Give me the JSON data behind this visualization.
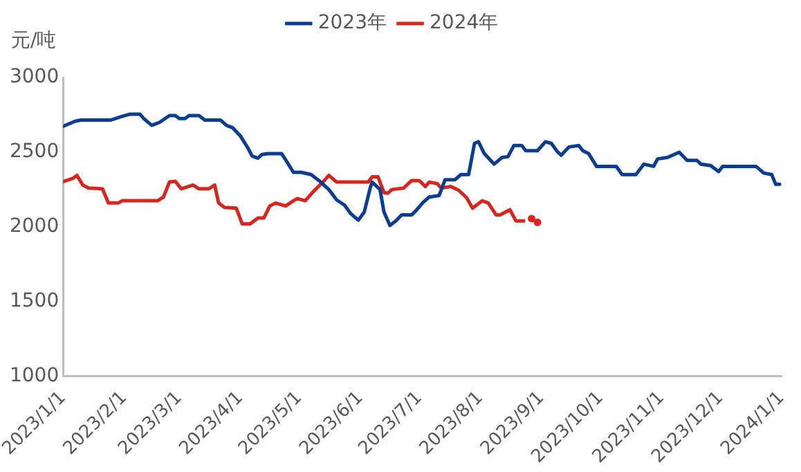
{
  "chart_data": {
    "type": "line",
    "ylabel": "元/吨",
    "legend": "top",
    "grid": false,
    "xlim": [
      "2023-01-01",
      "2024-01-01"
    ],
    "xticks": [
      {
        "value": "2023-01-01",
        "label": "2023/1/1"
      },
      {
        "value": "2023-02-01",
        "label": "2023/2/1"
      },
      {
        "value": "2023-03-01",
        "label": "2023/3/1"
      },
      {
        "value": "2023-04-01",
        "label": "2023/4/1"
      },
      {
        "value": "2023-05-01",
        "label": "2023/5/1"
      },
      {
        "value": "2023-06-01",
        "label": "2023/6/1"
      },
      {
        "value": "2023-07-01",
        "label": "2023/7/1"
      },
      {
        "value": "2023-08-01",
        "label": "2023/8/1"
      },
      {
        "value": "2023-09-01",
        "label": "2023/9/1"
      },
      {
        "value": "2023-10-01",
        "label": "2023/10/1"
      },
      {
        "value": "2023-11-01",
        "label": "2023/11/1"
      },
      {
        "value": "2023-12-01",
        "label": "2023/12/1"
      },
      {
        "value": "2024-01-01",
        "label": "2024/1/1"
      }
    ],
    "ylim": [
      1000,
      3000
    ],
    "yticks": [
      1000,
      1500,
      2000,
      2500,
      3000
    ],
    "series": [
      {
        "name": "2023年",
        "color": "#0b3d91",
        "x": [
          "2023-01-01",
          "2023-01-07",
          "2023-01-10",
          "2023-01-25",
          "2023-01-31",
          "2023-02-04",
          "2023-02-09",
          "2023-02-11",
          "2023-02-15",
          "2023-02-19",
          "2023-02-24",
          "2023-02-27",
          "2023-03-01",
          "2023-03-04",
          "2023-03-06",
          "2023-03-11",
          "2023-03-14",
          "2023-03-22",
          "2023-03-25",
          "2023-03-28",
          "2023-04-01",
          "2023-04-05",
          "2023-04-07",
          "2023-04-10",
          "2023-04-12",
          "2023-04-15",
          "2023-04-22",
          "2023-04-24",
          "2023-04-28",
          "2023-05-02",
          "2023-05-07",
          "2023-05-11",
          "2023-05-16",
          "2023-05-20",
          "2023-05-24",
          "2023-05-27",
          "2023-05-31",
          "2023-06-03",
          "2023-06-06",
          "2023-06-07",
          "2023-06-11",
          "2023-06-13",
          "2023-06-16",
          "2023-06-19",
          "2023-06-22",
          "2023-06-27",
          "2023-06-29",
          "2023-07-03",
          "2023-07-06",
          "2023-07-11",
          "2023-07-14",
          "2023-07-19",
          "2023-07-22",
          "2023-07-26",
          "2023-07-29",
          "2023-07-31",
          "2023-08-03",
          "2023-08-08",
          "2023-08-12",
          "2023-08-15",
          "2023-08-18",
          "2023-08-22",
          "2023-08-24",
          "2023-08-30",
          "2023-09-03",
          "2023-09-06",
          "2023-09-09",
          "2023-09-11",
          "2023-09-15",
          "2023-09-20",
          "2023-09-22",
          "2023-09-25",
          "2023-09-29",
          "2023-10-09",
          "2023-10-12",
          "2023-10-19",
          "2023-10-23",
          "2023-10-28",
          "2023-10-30",
          "2023-11-04",
          "2023-11-10",
          "2023-11-14",
          "2023-11-19",
          "2023-11-21",
          "2023-11-26",
          "2023-11-30",
          "2023-12-02",
          "2023-12-19",
          "2023-12-23",
          "2023-12-27",
          "2023-12-29",
          "2023-12-31"
        ],
        "values": [
          2673,
          2707,
          2715,
          2715,
          2740,
          2755,
          2755,
          2725,
          2680,
          2700,
          2745,
          2745,
          2725,
          2725,
          2745,
          2745,
          2715,
          2715,
          2680,
          2665,
          2610,
          2525,
          2475,
          2460,
          2485,
          2490,
          2490,
          2450,
          2365,
          2365,
          2350,
          2310,
          2250,
          2180,
          2145,
          2090,
          2045,
          2100,
          2260,
          2300,
          2250,
          2100,
          2010,
          2040,
          2080,
          2080,
          2105,
          2165,
          2200,
          2210,
          2315,
          2315,
          2350,
          2350,
          2560,
          2570,
          2490,
          2420,
          2465,
          2470,
          2545,
          2545,
          2510,
          2510,
          2570,
          2560,
          2505,
          2480,
          2535,
          2545,
          2510,
          2490,
          2405,
          2405,
          2350,
          2350,
          2420,
          2405,
          2455,
          2465,
          2500,
          2445,
          2445,
          2420,
          2410,
          2370,
          2405,
          2405,
          2360,
          2350,
          2285,
          2285
        ]
      },
      {
        "name": "2024年",
        "color": "#d7261e",
        "x": [
          "2023-01-01",
          "2023-01-06",
          "2023-01-08",
          "2023-01-11",
          "2023-01-14",
          "2023-01-21",
          "2023-01-24",
          "2023-01-29",
          "2023-01-31",
          "2023-02-18",
          "2023-02-21",
          "2023-02-24",
          "2023-02-27",
          "2023-03-02",
          "2023-03-08",
          "2023-03-11",
          "2023-03-16",
          "2023-03-19",
          "2023-03-21",
          "2023-03-24",
          "2023-03-30",
          "2023-04-02",
          "2023-04-06",
          "2023-04-10",
          "2023-04-13",
          "2023-04-16",
          "2023-04-19",
          "2023-04-24",
          "2023-04-28",
          "2023-04-30",
          "2023-05-04",
          "2023-05-08",
          "2023-05-13",
          "2023-05-16",
          "2023-05-20",
          "2023-06-05",
          "2023-06-07",
          "2023-06-10",
          "2023-06-13",
          "2023-06-15",
          "2023-06-17",
          "2023-06-23",
          "2023-06-27",
          "2023-07-01",
          "2023-07-04",
          "2023-07-06",
          "2023-07-10",
          "2023-07-12",
          "2023-07-17",
          "2023-07-21",
          "2023-07-25",
          "2023-07-28",
          "2023-08-02",
          "2023-08-05",
          "2023-08-09",
          "2023-08-11",
          "2023-08-16",
          "2023-08-19",
          "2023-08-23",
          "2023-08-25",
          "2023-08-27",
          "2023-08-28",
          "2023-08-30"
        ],
        "values": [
          2303,
          2325,
          2345,
          2280,
          2260,
          2255,
          2160,
          2160,
          2175,
          2175,
          2200,
          2300,
          2305,
          2255,
          2280,
          2255,
          2255,
          2280,
          2160,
          2130,
          2125,
          2020,
          2020,
          2060,
          2060,
          2140,
          2160,
          2140,
          2175,
          2190,
          2175,
          2235,
          2300,
          2345,
          2300,
          2300,
          2335,
          2335,
          2230,
          2225,
          2250,
          2260,
          2310,
          2310,
          2270,
          2300,
          2290,
          2260,
          2270,
          2245,
          2195,
          2125,
          2175,
          2160,
          2080,
          2080,
          2115,
          2040,
          2040,
          null,
          2055,
          null,
          2030
        ]
      }
    ]
  }
}
